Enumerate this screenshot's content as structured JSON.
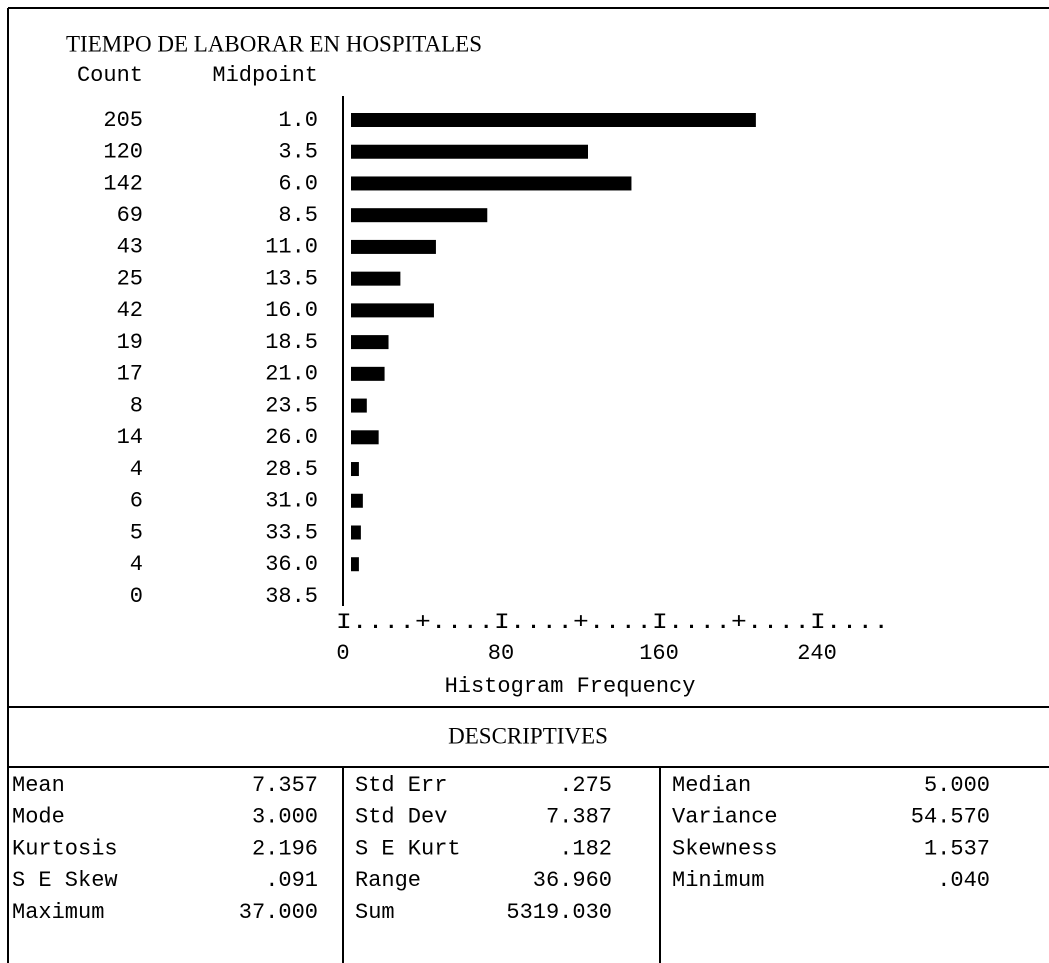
{
  "chart_data": {
    "type": "bar",
    "title": "TIEMPO DE LABORAR EN HOSPITALES",
    "count_header": "Count",
    "midpoint_header": "Midpoint",
    "categories": [
      "1.0",
      "3.5",
      "6.0",
      "8.5",
      "11.0",
      "13.5",
      "16.0",
      "18.5",
      "21.0",
      "23.5",
      "26.0",
      "28.5",
      "31.0",
      "33.5",
      "36.0",
      "38.5"
    ],
    "values": [
      205,
      120,
      142,
      69,
      43,
      25,
      42,
      19,
      17,
      8,
      14,
      4,
      6,
      5,
      4,
      0
    ],
    "color": "#000000",
    "xlim": [
      0,
      280
    ],
    "xticks": [
      0,
      80,
      160,
      240
    ],
    "axis_ruler": "I....+....I....+....I....+....I....",
    "xlabel": "Histogram Frequency"
  },
  "descriptives": {
    "title": "DESCRIPTIVES",
    "columns": [
      [
        [
          "Mean",
          "7.357"
        ],
        [
          "Mode",
          "3.000"
        ],
        [
          "Kurtosis",
          "2.196"
        ],
        [
          "S E Skew",
          ".091"
        ],
        [
          "Maximum",
          "37.000"
        ]
      ],
      [
        [
          "Std Err",
          ".275"
        ],
        [
          "Std Dev",
          "7.387"
        ],
        [
          "S E Kurt",
          ".182"
        ],
        [
          "Range",
          "36.960"
        ],
        [
          "Sum",
          "5319.030"
        ]
      ],
      [
        [
          "Median",
          "5.000"
        ],
        [
          "Variance",
          "54.570"
        ],
        [
          "Skewness",
          "1.537"
        ],
        [
          "Minimum",
          ".040"
        ]
      ]
    ]
  }
}
